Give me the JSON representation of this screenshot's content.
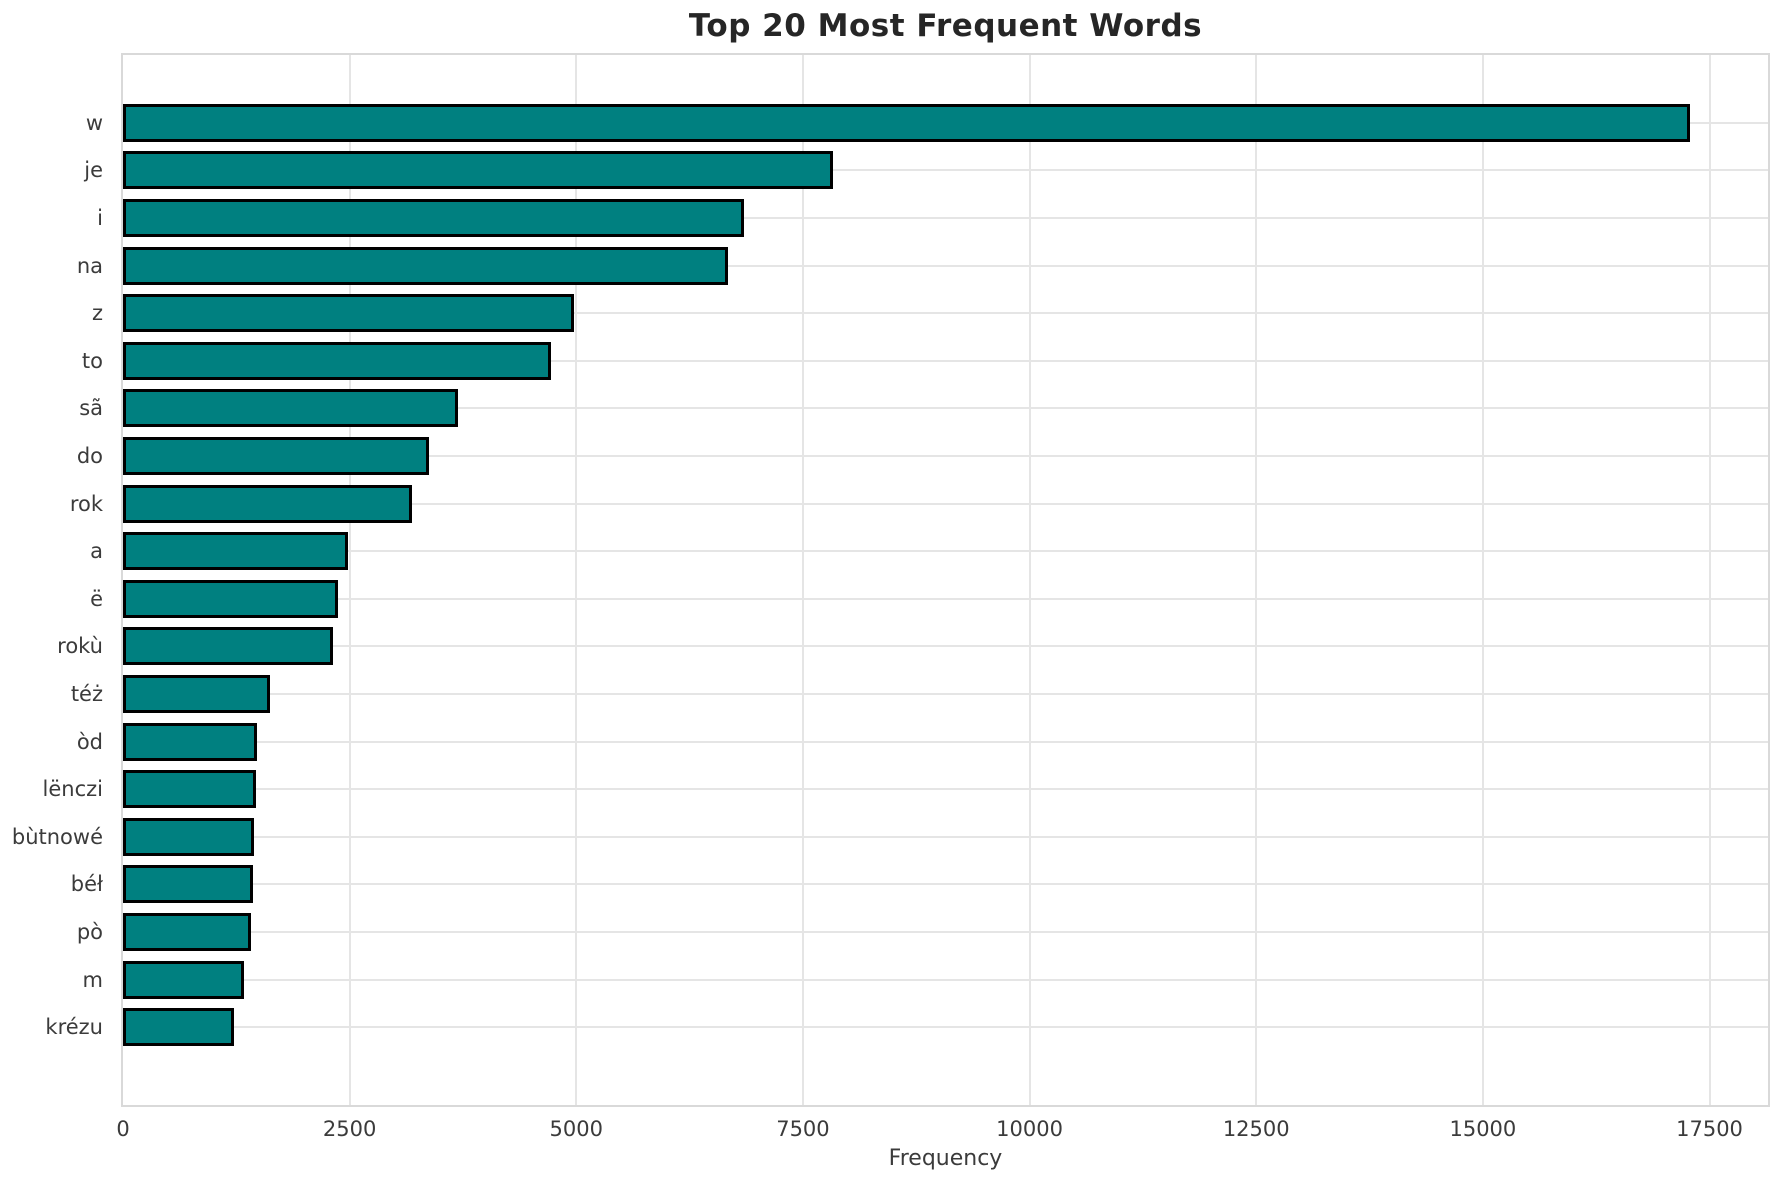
{
  "title": "Top 20 Most Frequent Words",
  "chart_data": {
    "type": "bar",
    "orientation": "horizontal",
    "title": "Top 20 Most Frequent Words",
    "xlabel": "Frequency",
    "ylabel": "",
    "categories": [
      "w",
      "je",
      "i",
      "na",
      "z",
      "to",
      "sã",
      "do",
      "rok",
      "a",
      "ë",
      "rokù",
      "téż",
      "òd",
      "lënczi",
      "bùtnowé",
      "béł",
      "pò",
      "m",
      "krézu"
    ],
    "values": [
      17280,
      7830,
      6850,
      6670,
      4970,
      4720,
      3700,
      3380,
      3190,
      2480,
      2370,
      2320,
      1620,
      1475,
      1465,
      1440,
      1430,
      1410,
      1330,
      1220
    ],
    "xlim": [
      0,
      18145
    ],
    "xticks": [
      0,
      2500,
      5000,
      7500,
      10000,
      12500,
      15000,
      17500
    ],
    "grid": true,
    "legend": "none",
    "bar_color": "#008080",
    "bar_edge_color": "#000000",
    "grid_color": "#e5e5e5"
  }
}
